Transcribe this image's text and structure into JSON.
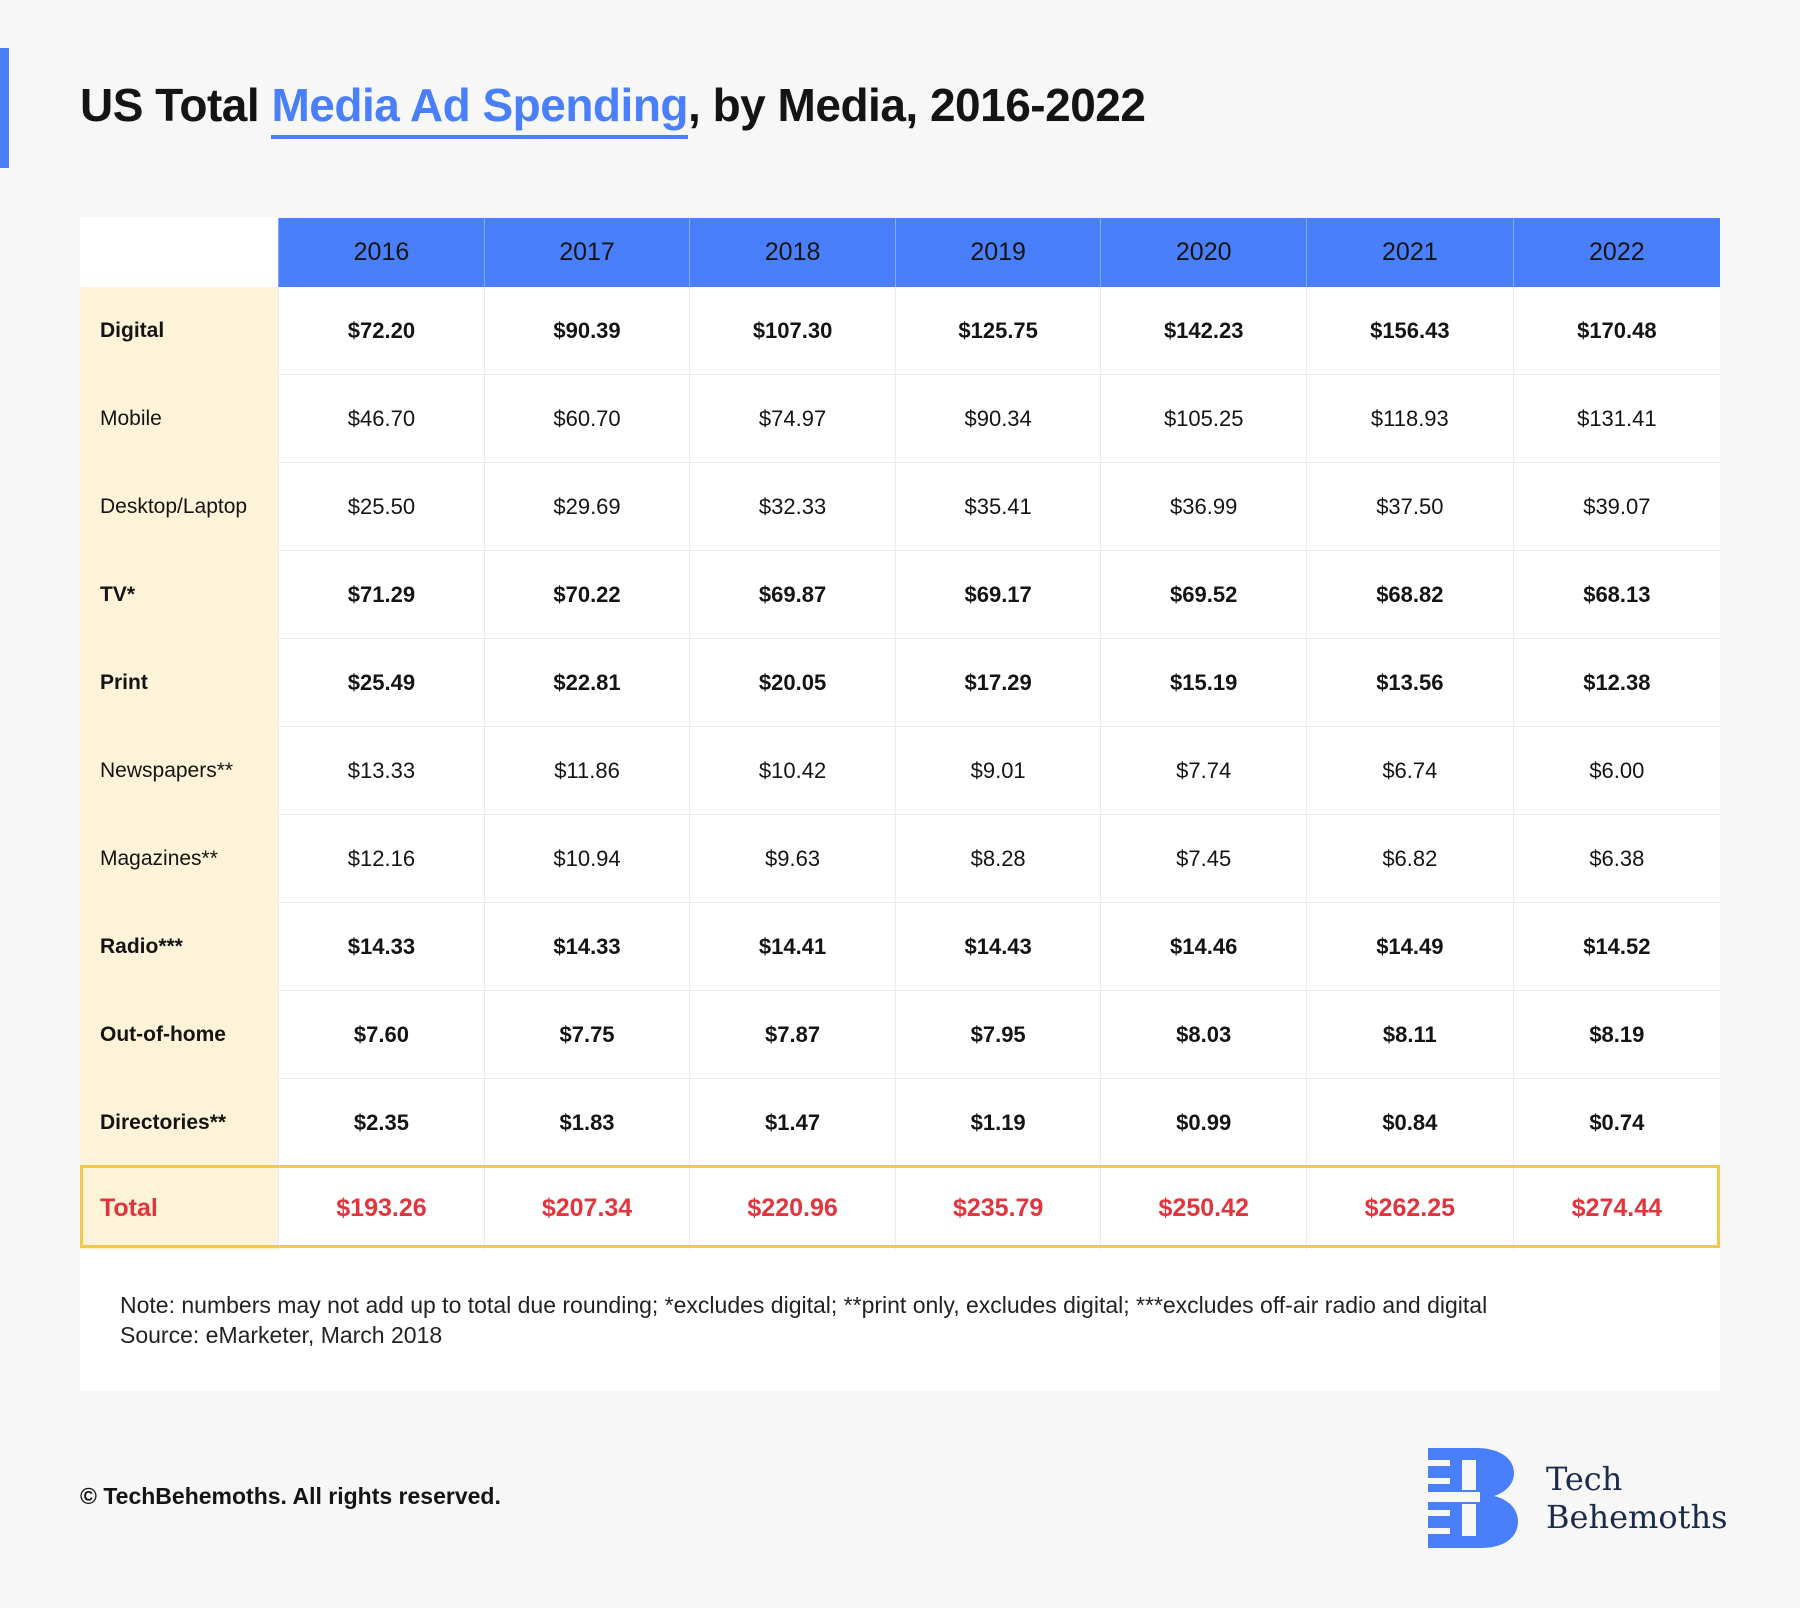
{
  "title": {
    "prefix": "US Total ",
    "highlight": "Media Ad Spending",
    "suffix": ", by Media, 2016-2022"
  },
  "colors": {
    "accent": "#4a7ffb",
    "label_bg": "#fdf3d8",
    "total_text": "#e3343d",
    "total_frame": "#f4c84a"
  },
  "chart_data": {
    "type": "table",
    "columns": [
      "2016",
      "2017",
      "2018",
      "2019",
      "2020",
      "2021",
      "2022"
    ],
    "rows": [
      {
        "label": "Digital",
        "bold": true,
        "values": [
          "$72.20",
          "$90.39",
          "$107.30",
          "$125.75",
          "$142.23",
          "$156.43",
          "$170.48"
        ]
      },
      {
        "label": "Mobile",
        "bold": false,
        "values": [
          "$46.70",
          "$60.70",
          "$74.97",
          "$90.34",
          "$105.25",
          "$118.93",
          "$131.41"
        ]
      },
      {
        "label": "Desktop/Laptop",
        "bold": false,
        "values": [
          "$25.50",
          "$29.69",
          "$32.33",
          "$35.41",
          "$36.99",
          "$37.50",
          "$39.07"
        ]
      },
      {
        "label": "TV*",
        "bold": true,
        "values": [
          "$71.29",
          "$70.22",
          "$69.87",
          "$69.17",
          "$69.52",
          "$68.82",
          "$68.13"
        ]
      },
      {
        "label": "Print",
        "bold": true,
        "values": [
          "$25.49",
          "$22.81",
          "$20.05",
          "$17.29",
          "$15.19",
          "$13.56",
          "$12.38"
        ]
      },
      {
        "label": "Newspapers**",
        "bold": false,
        "values": [
          "$13.33",
          "$11.86",
          "$10.42",
          "$9.01",
          "$7.74",
          "$6.74",
          "$6.00"
        ]
      },
      {
        "label": "Magazines**",
        "bold": false,
        "values": [
          "$12.16",
          "$10.94",
          "$9.63",
          "$8.28",
          "$7.45",
          "$6.82",
          "$6.38"
        ]
      },
      {
        "label": "Radio***",
        "bold": true,
        "values": [
          "$14.33",
          "$14.33",
          "$14.41",
          "$14.43",
          "$14.46",
          "$14.49",
          "$14.52"
        ]
      },
      {
        "label": "Out-of-home",
        "bold": true,
        "values": [
          "$7.60",
          "$7.75",
          "$7.87",
          "$7.95",
          "$8.03",
          "$8.11",
          "$8.19"
        ]
      },
      {
        "label": "Directories**",
        "bold": true,
        "values": [
          "$2.35",
          "$1.83",
          "$1.47",
          "$1.19",
          "$0.99",
          "$0.84",
          "$0.74"
        ]
      }
    ],
    "total": {
      "label": "Total",
      "values": [
        "$193.26",
        "$207.34",
        "$220.96",
        "$235.79",
        "$250.42",
        "$262.25",
        "$274.44"
      ]
    }
  },
  "notes": {
    "note": "Note: numbers may not add up to total due rounding; *excludes digital; **print only, excludes digital; ***excludes off-air radio and digital",
    "source": "Source: eMarketer, March 2018"
  },
  "footer": {
    "copyright": "© TechBehemoths. All rights reserved."
  },
  "logo": {
    "line1": "Tech",
    "line2": "Behemoths",
    "icon": "tb-logo-icon"
  }
}
